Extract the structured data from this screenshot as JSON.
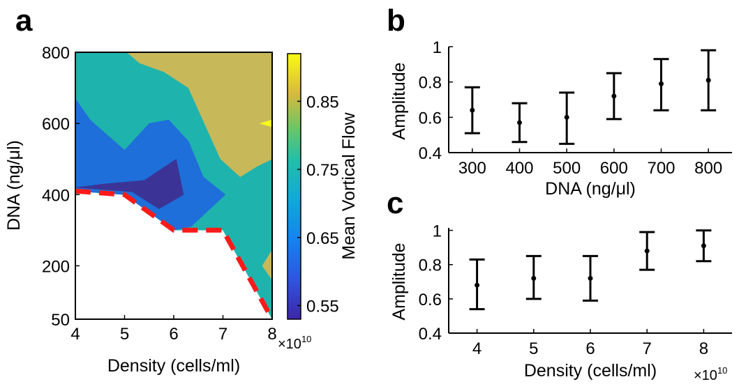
{
  "panel_labels": [
    "a",
    "b",
    "c"
  ],
  "chart_data": [
    {
      "type": "heatmap",
      "panel": "a",
      "xlabel": "Density (cells/ml)",
      "ylabel": "DNA (ng/μl)",
      "x_multiplier": "×10",
      "x_multiplier_exp": "10",
      "x_ticks": [
        "4",
        "5",
        "6",
        "7",
        "8"
      ],
      "y_ticks": [
        "50",
        "200",
        "400",
        "600",
        "800"
      ],
      "xlim": [
        4,
        8
      ],
      "ylim": [
        50,
        800
      ],
      "colorbar_label": "Mean Vortical Flow",
      "colorbar_ticks": [
        "0.55",
        "0.65",
        "0.75",
        "0.85"
      ],
      "colorbar_range": [
        0.53,
        0.92
      ],
      "colors": {
        "level_055": "#3b3496",
        "level_060": "#1e6fd9",
        "level_070": "#1fb3ad",
        "level_080": "#c7b95a",
        "level_090": "#f9fa14",
        "boundary": "#ff1a1a"
      },
      "regions": [
        {
          "level": 0.7,
          "color": "#1fb3ad",
          "points": [
            [
              4,
              800
            ],
            [
              8,
              800
            ],
            [
              8,
              50
            ],
            [
              7,
              300
            ],
            [
              6,
              300
            ],
            [
              5,
              400
            ],
            [
              4,
              410
            ]
          ]
        },
        {
          "level": 0.8,
          "color": "#c7b95a",
          "points": [
            [
              5.05,
              800
            ],
            [
              8,
              800
            ],
            [
              8,
              500
            ],
            [
              7.7,
              480
            ],
            [
              7.35,
              450
            ],
            [
              6.95,
              500
            ],
            [
              6.3,
              700
            ],
            [
              5.8,
              745
            ],
            [
              5.3,
              770
            ]
          ]
        },
        {
          "level": 0.8,
          "color": "#c7b95a",
          "points": [
            [
              8,
              245
            ],
            [
              7.8,
              200
            ],
            [
              8,
              160
            ]
          ]
        },
        {
          "level": 0.9,
          "color": "#f9fa14",
          "points": [
            [
              8,
              610
            ],
            [
              7.75,
              600
            ],
            [
              8,
              590
            ]
          ]
        },
        {
          "level": 0.6,
          "color": "#1e6fd9",
          "points": [
            [
              4,
              670
            ],
            [
              4.3,
              610
            ],
            [
              5,
              525
            ],
            [
              5.5,
              600
            ],
            [
              5.9,
              610
            ],
            [
              6.3,
              550
            ],
            [
              6.6,
              450
            ],
            [
              7.05,
              400
            ],
            [
              6.35,
              310
            ],
            [
              6,
              300
            ],
            [
              5,
              400
            ],
            [
              4,
              410
            ]
          ]
        },
        {
          "level": 0.55,
          "color": "#3b3496",
          "points": [
            [
              4,
              420
            ],
            [
              5.15,
              408
            ],
            [
              5.7,
              360
            ],
            [
              6.2,
              400
            ],
            [
              6.05,
              500
            ],
            [
              5.4,
              440
            ],
            [
              4.6,
              430
            ]
          ]
        }
      ],
      "boundary": [
        [
          4,
          410
        ],
        [
          5,
          400
        ],
        [
          6,
          300
        ],
        [
          7,
          300
        ],
        [
          8,
          50
        ]
      ]
    },
    {
      "type": "scatter",
      "panel": "b",
      "xlabel": "DNA (ng/μl)",
      "ylabel": "Amplitude",
      "x": [
        300,
        400,
        500,
        600,
        700,
        800
      ],
      "x_ticks": [
        "300",
        "400",
        "500",
        "600",
        "700",
        "800"
      ],
      "y": [
        0.64,
        0.57,
        0.6,
        0.72,
        0.79,
        0.81
      ],
      "err_low": [
        0.51,
        0.46,
        0.45,
        0.59,
        0.64,
        0.64
      ],
      "err_high": [
        0.77,
        0.68,
        0.74,
        0.85,
        0.93,
        0.98
      ],
      "y_ticks": [
        "0.4",
        "0.6",
        "0.8",
        "1"
      ],
      "xlim": [
        250,
        850
      ],
      "ylim": [
        0.4,
        1.0
      ]
    },
    {
      "type": "scatter",
      "panel": "c",
      "xlabel": "Density (cells/ml)",
      "ylabel": "Amplitude",
      "x_multiplier": "×10",
      "x_multiplier_exp": "10",
      "x": [
        4,
        5,
        6,
        7,
        8
      ],
      "x_ticks": [
        "4",
        "5",
        "6",
        "7",
        "8"
      ],
      "y": [
        0.68,
        0.72,
        0.72,
        0.88,
        0.91
      ],
      "err_low": [
        0.54,
        0.6,
        0.59,
        0.77,
        0.82
      ],
      "err_high": [
        0.83,
        0.85,
        0.85,
        0.99,
        1.0
      ],
      "y_ticks": [
        "0.4",
        "0.6",
        "0.8",
        "1"
      ],
      "xlim": [
        3.5,
        8.5
      ],
      "ylim": [
        0.4,
        1.1
      ]
    }
  ]
}
